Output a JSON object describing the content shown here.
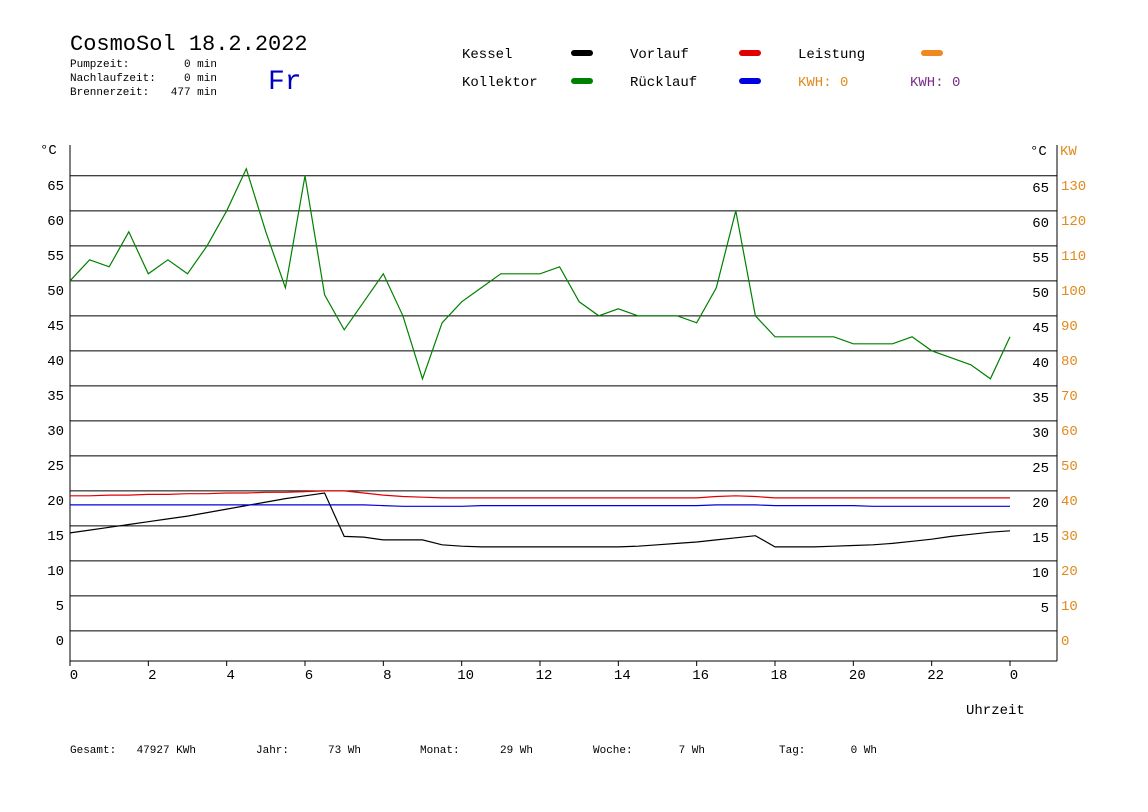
{
  "chart_data": {
    "type": "line",
    "title": "CosmoSol 18.2.2022",
    "weekday": "Fr",
    "info": [
      {
        "label": "Pumpzeit:",
        "value": "0 min"
      },
      {
        "label": "Nachlaufzeit:",
        "value": "0 min"
      },
      {
        "label": "Brennerzeit:",
        "value": "477 min"
      }
    ],
    "kwh_labels": [
      {
        "text": "KWH: 0",
        "color": "#e08a1e"
      },
      {
        "text": "KWH: 0",
        "color": "#7b2d8b"
      }
    ],
    "ylabel": "°C",
    "y2label": "KW",
    "xlabel": "Uhrzeit",
    "xlim": [
      0,
      25.2
    ],
    "xticks": [
      0,
      2,
      4,
      6,
      8,
      10,
      12,
      14,
      16,
      18,
      20,
      22,
      {
        "value": 24,
        "label": "0"
      }
    ],
    "ylim": [
      -4.3,
      69.4
    ],
    "yticks": [
      0,
      5,
      10,
      15,
      20,
      25,
      30,
      35,
      40,
      45,
      50,
      55,
      60,
      65
    ],
    "y2lim": [
      -8.6,
      138.8
    ],
    "y2ticks": [
      0,
      10,
      20,
      30,
      40,
      50,
      60,
      70,
      80,
      90,
      100,
      110,
      120,
      130
    ],
    "x": [
      0,
      0.5,
      1,
      1.5,
      2,
      2.5,
      3,
      3.5,
      4,
      4.5,
      5,
      5.5,
      6,
      6.5,
      7,
      7.5,
      8,
      8.5,
      9,
      9.5,
      10,
      10.5,
      11,
      11.5,
      12,
      12.5,
      13,
      13.5,
      14,
      14.5,
      15,
      15.5,
      16,
      16.5,
      17,
      17.5,
      18,
      18.5,
      19,
      19.5,
      20,
      20.5,
      21,
      21.5,
      22,
      22.5,
      23,
      23.5,
      24
    ],
    "series": [
      {
        "name": "Kessel",
        "color": "#000000",
        "values": [
          14,
          14.4,
          14.8,
          15.2,
          15.6,
          16,
          16.4,
          16.9,
          17.4,
          17.9,
          18.4,
          18.9,
          19.3,
          19.7,
          13.5,
          13.4,
          13,
          13,
          13,
          12.3,
          12.1,
          12,
          12,
          12,
          12,
          12,
          12,
          12,
          12,
          12.1,
          12.3,
          12.5,
          12.7,
          13,
          13.3,
          13.6,
          12,
          12,
          12,
          12.1,
          12.2,
          12.3,
          12.5,
          12.8,
          13.1,
          13.5,
          13.8,
          14.1,
          14.3
        ]
      },
      {
        "name": "Vorlauf",
        "color": "#e00000",
        "values": [
          19.3,
          19.3,
          19.4,
          19.4,
          19.5,
          19.5,
          19.6,
          19.6,
          19.7,
          19.7,
          19.8,
          19.8,
          19.9,
          20,
          20,
          19.7,
          19.4,
          19.2,
          19.1,
          19,
          19,
          19,
          19,
          19,
          19,
          19,
          19,
          19,
          19,
          19,
          19,
          19,
          19,
          19.2,
          19.3,
          19.2,
          19,
          19,
          19,
          19,
          19,
          19,
          19,
          19,
          19,
          19,
          19,
          19,
          19
        ]
      },
      {
        "name": "Leistung",
        "color": "#f08a1e",
        "axis": "y2"
      },
      {
        "name": "Kollektor",
        "color": "#008000",
        "values": [
          50,
          53,
          52,
          57,
          51,
          53,
          51,
          55,
          60,
          66,
          57,
          49,
          65,
          48,
          43,
          47,
          51,
          45,
          36,
          44,
          47,
          49,
          51,
          51,
          51,
          52,
          47,
          45,
          46,
          45,
          45,
          45,
          44,
          49,
          60,
          45,
          42,
          42,
          42,
          42,
          41,
          41,
          41,
          42,
          40,
          39,
          38,
          36,
          42
        ]
      },
      {
        "name": "Rücklauf",
        "color": "#0000e0",
        "values": [
          18,
          18,
          18,
          18,
          18,
          18,
          18,
          18,
          18,
          18,
          18,
          18,
          18,
          18,
          18,
          18,
          17.9,
          17.8,
          17.8,
          17.8,
          17.8,
          17.9,
          17.9,
          17.9,
          17.9,
          17.9,
          17.9,
          17.9,
          17.9,
          17.9,
          17.9,
          17.9,
          17.9,
          18,
          18,
          18,
          17.9,
          17.9,
          17.9,
          17.9,
          17.9,
          17.8,
          17.8,
          17.8,
          17.8,
          17.8,
          17.8,
          17.8,
          17.8
        ]
      }
    ],
    "totals": [
      {
        "label": "Gesamt:",
        "value": "47927 KWh"
      },
      {
        "label": "Jahr:",
        "value": "73 Wh"
      },
      {
        "label": "Monat:",
        "value": "29 Wh"
      },
      {
        "label": "Woche:",
        "value": "7 Wh"
      },
      {
        "label": "Tag:",
        "value": "0 Wh"
      }
    ]
  }
}
